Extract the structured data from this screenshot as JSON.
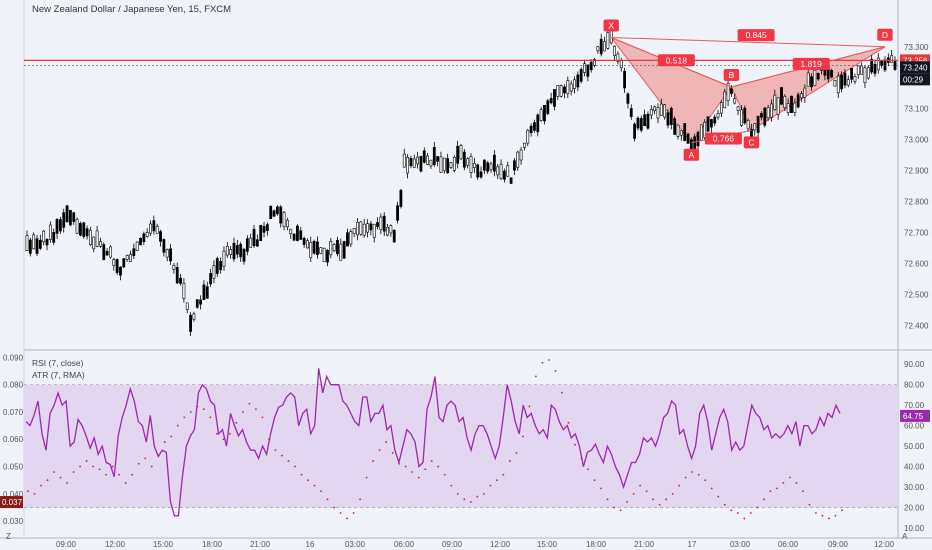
{
  "header": {
    "title": "New Zealand Dollar / Japanese Yen, 15, FXCM",
    "rsi_label": "RSI (7, close)",
    "atr_label": "ATR (7, RMA)",
    "corner_left": "Z",
    "corner_right": "A"
  },
  "colors": {
    "background": "#f0f3fa",
    "candle": "#000000",
    "pattern_fill": "#f0a0a0",
    "pattern_line": "#e55b5b",
    "label_bg": "#f23645",
    "rsi_line": "#9c27b0",
    "rsi_band": "#e2d6f0",
    "atr_dots": "#c62828"
  },
  "chart_data": [
    {
      "type": "candlestick",
      "title": "New Zealand Dollar / Japanese Yen, 15, FXCM",
      "ylim": [
        72.34,
        73.38
      ],
      "y_ticks": [
        "73.300",
        "73.200",
        "73.100",
        "73.000",
        "72.900",
        "72.800",
        "72.700",
        "72.600",
        "72.500",
        "72.400"
      ],
      "x_ticks": [
        "09:00",
        "12:00",
        "15:00",
        "18:00",
        "21:00",
        "16",
        "03:00",
        "06:00",
        "09:00",
        "12:00",
        "15:00",
        "18:00",
        "21:00",
        "17",
        "03:00",
        "06:00",
        "09:00",
        "12:00"
      ],
      "price_labels": {
        "high_line": "73.256",
        "last": "73.240",
        "countdown": "00:29"
      },
      "path": [
        [
          0,
          72.66
        ],
        [
          8,
          72.69
        ],
        [
          12,
          72.76
        ],
        [
          18,
          72.7
        ],
        [
          24,
          72.64
        ],
        [
          28,
          72.58
        ],
        [
          33,
          72.66
        ],
        [
          38,
          72.73
        ],
        [
          43,
          72.62
        ],
        [
          47,
          72.51
        ],
        [
          49,
          72.42
        ],
        [
          55,
          72.54
        ],
        [
          60,
          72.65
        ],
        [
          65,
          72.64
        ],
        [
          70,
          72.69
        ],
        [
          74,
          72.77
        ],
        [
          78,
          72.72
        ],
        [
          84,
          72.66
        ],
        [
          89,
          72.63
        ],
        [
          95,
          72.65
        ],
        [
          98,
          72.7
        ],
        [
          106,
          72.72
        ],
        [
          110,
          72.7
        ],
        [
          112,
          72.82
        ],
        [
          113,
          72.93
        ],
        [
          120,
          72.94
        ],
        [
          126,
          72.92
        ],
        [
          130,
          72.95
        ],
        [
          135,
          72.9
        ],
        [
          140,
          72.91
        ],
        [
          145,
          72.88
        ],
        [
          148,
          72.95
        ],
        [
          150,
          73.02
        ],
        [
          154,
          73.08
        ],
        [
          157,
          73.13
        ],
        [
          162,
          73.17
        ],
        [
          165,
          73.2
        ],
        [
          170,
          73.25
        ],
        [
          172,
          73.31
        ],
        [
          175,
          73.32
        ],
        [
          178,
          73.24
        ],
        [
          180,
          73.12
        ],
        [
          182,
          73.03
        ],
        [
          186,
          73.07
        ],
        [
          190,
          73.1
        ],
        [
          195,
          73.04
        ],
        [
          199,
          72.99
        ],
        [
          203,
          73.02
        ],
        [
          207,
          73.09
        ],
        [
          209,
          73.14
        ],
        [
          211,
          73.17
        ],
        [
          214,
          73.08
        ],
        [
          217,
          73.03
        ],
        [
          222,
          73.09
        ],
        [
          226,
          73.13
        ],
        [
          229,
          73.1
        ],
        [
          234,
          73.18
        ],
        [
          237,
          73.22
        ],
        [
          241,
          73.2
        ],
        [
          244,
          73.18
        ],
        [
          249,
          73.21
        ],
        [
          253,
          73.23
        ],
        [
          256,
          73.25
        ]
      ],
      "pattern": {
        "points": [
          {
            "name": "X",
            "x": 175,
            "y": 73.33
          },
          {
            "name": "A",
            "x": 199,
            "y": 72.99
          },
          {
            "name": "B",
            "x": 211,
            "y": 73.17
          },
          {
            "name": "C",
            "x": 217,
            "y": 73.03
          },
          {
            "name": "D",
            "x": 257,
            "y": 73.3
          }
        ],
        "ratios": {
          "XB": "0.518",
          "AC": "0.766",
          "BD": "1.819",
          "XD": "0.845"
        }
      }
    },
    {
      "type": "line",
      "title": "RSI (7, close)",
      "ylim": [
        10,
        95
      ],
      "y_ticks": [
        "90.00",
        "80.00",
        "70.00",
        "60.00",
        "50.00",
        "40.00",
        "30.00",
        "20.00",
        "10.00"
      ],
      "bands": {
        "upper": 80,
        "lower": 20
      },
      "current_value": "64.75",
      "values": [
        62,
        60,
        65,
        72,
        56,
        48,
        66,
        70,
        76,
        70,
        72,
        50,
        52,
        63,
        60,
        55,
        49,
        54,
        46,
        50,
        42,
        41,
        35,
        55,
        64,
        70,
        78,
        72,
        62,
        60,
        52,
        65,
        50,
        45,
        48,
        47,
        23,
        16,
        16,
        35,
        50,
        55,
        58,
        76,
        80,
        78,
        72,
        70,
        56,
        58,
        50,
        66,
        60,
        55,
        58,
        52,
        48,
        48,
        44,
        50,
        46,
        56,
        64,
        69,
        70,
        74,
        76,
        74,
        60,
        66,
        68,
        56,
        60,
        88,
        76,
        84,
        80,
        80,
        80,
        72,
        70,
        66,
        62,
        60,
        74,
        74,
        62,
        66,
        66,
        70,
        58,
        60,
        48,
        42,
        50,
        58,
        56,
        52,
        40,
        42,
        68,
        74,
        84,
        64,
        62,
        70,
        72,
        70,
        62,
        64,
        54,
        48,
        56,
        60,
        60,
        56,
        50,
        44,
        50,
        64,
        80,
        72,
        62,
        56,
        70,
        64,
        66,
        60,
        56,
        58,
        54,
        70,
        68,
        62,
        58,
        60,
        54,
        56,
        50,
        40,
        47,
        48,
        51,
        46,
        42,
        50,
        46,
        40,
        36,
        30,
        36,
        42,
        42,
        46,
        54,
        52,
        54,
        50,
        56,
        64,
        66,
        72,
        70,
        56,
        58,
        50,
        44,
        50,
        66,
        70,
        62,
        48,
        56,
        64,
        68,
        62,
        48,
        52,
        48,
        50,
        60,
        70,
        66,
        64,
        58,
        60,
        54,
        56,
        54,
        56,
        60,
        56,
        62,
        50,
        60,
        60,
        56,
        58,
        64,
        60,
        66,
        64,
        70,
        66
      ]
    },
    {
      "type": "scatter",
      "title": "ATR (7, RMA)",
      "ylim": [
        0.0275,
        0.0912
      ],
      "y_ticks": [
        "0.090",
        "0.080",
        "0.070",
        "0.060",
        "0.050",
        "0.040",
        "0.030"
      ],
      "current_value": "0.037",
      "series": [
        {
          "name": "ATR (7, RMA)",
          "values": [
            0.041,
            0.04,
            0.043,
            0.045,
            0.048,
            0.046,
            0.044,
            0.048,
            0.05,
            0.052,
            0.05,
            0.049,
            0.047,
            0.05,
            0.047,
            0.044,
            0.047,
            0.051,
            0.053,
            0.05,
            0.054,
            0.059,
            0.061,
            0.065,
            0.068,
            0.07,
            0.072,
            0.071,
            0.068,
            0.062,
            0.06,
            0.062,
            0.066,
            0.07,
            0.073,
            0.071,
            0.068,
            0.06,
            0.056,
            0.054,
            0.052,
            0.05,
            0.047,
            0.045,
            0.043,
            0.041,
            0.038,
            0.035,
            0.033,
            0.031,
            0.033,
            0.038,
            0.046,
            0.052,
            0.056,
            0.059,
            0.055,
            0.051,
            0.05,
            0.048,
            0.046,
            0.049,
            0.052,
            0.05,
            0.047,
            0.043,
            0.04,
            0.038,
            0.037,
            0.039,
            0.04,
            0.043,
            0.045,
            0.047,
            0.052,
            0.055,
            0.061,
            0.072,
            0.083,
            0.088,
            0.089,
            0.085,
            0.077,
            0.066,
            0.058,
            0.053,
            0.049,
            0.045,
            0.042,
            0.038,
            0.035,
            0.034,
            0.037,
            0.04,
            0.043,
            0.041,
            0.038,
            0.036,
            0.038,
            0.04,
            0.043,
            0.046,
            0.048,
            0.047,
            0.045,
            0.042,
            0.039,
            0.036,
            0.034,
            0.033,
            0.031,
            0.033,
            0.035,
            0.038,
            0.041,
            0.042,
            0.044,
            0.046,
            0.044,
            0.041,
            0.036,
            0.033,
            0.032,
            0.031,
            0.032,
            0.034
          ]
        }
      ]
    }
  ]
}
